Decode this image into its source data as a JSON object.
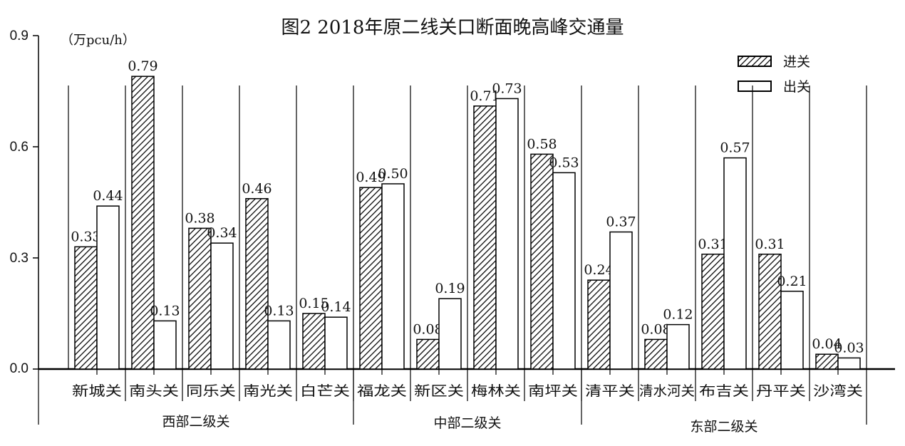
{
  "title": "图2  2018年原二线关口断面晚高峰交通量",
  "unit_label": "（万pcu/h）",
  "y_ticks": [
    "0.9",
    "0.6",
    "0.3",
    "0.0"
  ],
  "legend": [
    {
      "label": "进关",
      "pattern": "hatched"
    },
    {
      "label": "出关",
      "pattern": "open"
    }
  ],
  "groups": [
    {
      "label": "西部二级关"
    },
    {
      "label": "中部二级关"
    },
    {
      "label": "东部二级关"
    }
  ],
  "chart_data": {
    "type": "bar",
    "title": "图2 2018年原二线关口断面晚高峰交通量",
    "xlabel": "",
    "ylabel": "万pcu/h",
    "ylim": [
      0,
      0.9
    ],
    "yticks": [
      0.0,
      0.3,
      0.6,
      0.9
    ],
    "grid": false,
    "legend_position": "upper right",
    "categories": [
      "新城关",
      "南头关",
      "同乐关",
      "南光关",
      "白芒关",
      "福龙关",
      "新区关",
      "梅林关",
      "南坪关",
      "清平关",
      "清水河关",
      "布吉关",
      "丹平关",
      "沙湾关"
    ],
    "category_groups": [
      {
        "name": "西部二级关",
        "members": [
          "新城关",
          "南头关",
          "同乐关",
          "南光关",
          "白芒关"
        ]
      },
      {
        "name": "中部二级关",
        "members": [
          "福龙关",
          "新区关",
          "梅林关",
          "南坪关"
        ]
      },
      {
        "name": "东部二级关",
        "members": [
          "清平关",
          "清水河关",
          "布吉关",
          "丹平关",
          "沙湾关"
        ]
      }
    ],
    "series": [
      {
        "name": "进关",
        "values": [
          0.33,
          0.79,
          0.38,
          0.46,
          0.15,
          0.49,
          0.08,
          0.71,
          0.58,
          0.24,
          0.08,
          0.31,
          0.31,
          0.04
        ]
      },
      {
        "name": "出关",
        "values": [
          0.44,
          0.13,
          0.34,
          0.13,
          0.14,
          0.5,
          0.19,
          0.73,
          0.53,
          0.37,
          0.12,
          0.57,
          0.21,
          0.03
        ]
      }
    ],
    "value_labels": {
      "进关": [
        "0.33",
        "0.79",
        "0.38",
        "0.46",
        "0.15",
        "0.49",
        "0.08",
        "0.71",
        "0.58",
        "0.24",
        "0.08",
        "0.31",
        "0.31",
        "0.04"
      ],
      "出关": [
        "0.44",
        "0.13",
        "0.34",
        "0.13",
        "0.14",
        "0.50",
        "0.19",
        "0.73",
        "0.53",
        "0.37",
        "0.12",
        "0.57",
        "0.21",
        "0.03"
      ]
    }
  }
}
